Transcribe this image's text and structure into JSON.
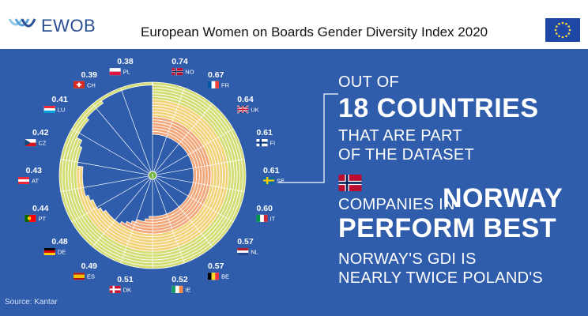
{
  "header": {
    "logo_text": "EWOB",
    "title": "European Women on Boards Gender Diversity Index 2020"
  },
  "headline": {
    "line1": "OUT OF",
    "line2": "18 COUNTRIES",
    "line3": "THAT ARE PART",
    "line4": "OF THE DATASET",
    "line5a": "COMPANIES IN",
    "line5b": "NORWAY",
    "line6": "PERFORM BEST",
    "line7": "NORWAY'S GDI IS",
    "line8": "NEARLY TWICE POLAND'S"
  },
  "source": "Source: Kantar",
  "chart_data": {
    "type": "radial-bar",
    "center_label": "1",
    "series": [
      {
        "code": "NO",
        "value": 0.74
      },
      {
        "code": "FR",
        "value": 0.67
      },
      {
        "code": "UK",
        "value": 0.64
      },
      {
        "code": "FI",
        "value": 0.61
      },
      {
        "code": "SE",
        "value": 0.61
      },
      {
        "code": "IT",
        "value": 0.6
      },
      {
        "code": "NL",
        "value": 0.57
      },
      {
        "code": "BE",
        "value": 0.57
      },
      {
        "code": "IE",
        "value": 0.52
      },
      {
        "code": "DK",
        "value": 0.51
      },
      {
        "code": "ES",
        "value": 0.49
      },
      {
        "code": "DE",
        "value": 0.48
      },
      {
        "code": "PT",
        "value": 0.44
      },
      {
        "code": "AT",
        "value": 0.43
      },
      {
        "code": "CZ",
        "value": 0.42
      },
      {
        "code": "LU",
        "value": 0.41
      },
      {
        "code": "CH",
        "value": 0.39
      },
      {
        "code": "PL",
        "value": 0.38
      }
    ],
    "colors": {
      "high": "#d4dc74",
      "mid": "#f3d27a",
      "low": "#f2a77a",
      "ring": "#ffffff",
      "center": "#6fb33d"
    }
  }
}
